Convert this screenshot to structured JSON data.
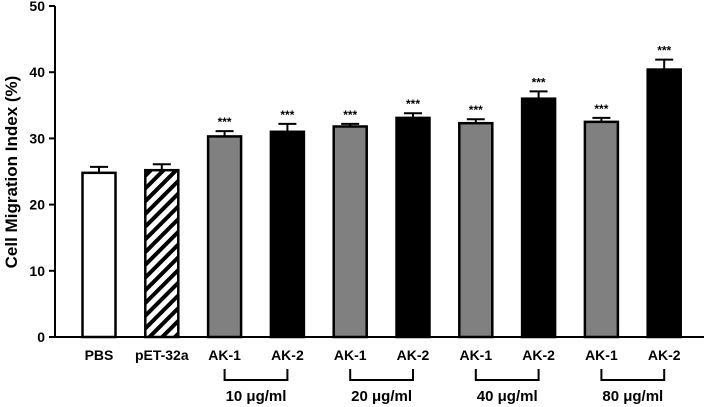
{
  "chart_data": {
    "type": "bar",
    "title": "",
    "ylabel": "Cell Migration Index (%)",
    "xlabel": "",
    "ylim": [
      0,
      50
    ],
    "yticks": [
      0,
      10,
      20,
      30,
      40,
      50
    ],
    "categories": [
      "PBS",
      "pET-32a",
      "AK-1",
      "AK-2",
      "AK-1",
      "AK-2",
      "AK-1",
      "AK-2",
      "AK-1",
      "AK-2"
    ],
    "values": [
      24.8,
      25.2,
      30.3,
      31.0,
      31.8,
      33.1,
      32.3,
      36.0,
      32.5,
      40.4
    ],
    "errors": [
      0.9,
      0.9,
      0.8,
      1.2,
      0.4,
      0.7,
      0.6,
      1.1,
      0.6,
      1.5
    ],
    "significance": [
      "",
      "",
      "***",
      "***",
      "***",
      "***",
      "***",
      "***",
      "***",
      "***"
    ],
    "fills": [
      "white",
      "hatched",
      "gray",
      "black",
      "gray",
      "black",
      "gray",
      "black",
      "gray",
      "black"
    ],
    "colors": {
      "gray": "#808080",
      "black": "#000000",
      "white": "#ffffff",
      "axis": "#000000"
    },
    "groups": [
      {
        "label": "10 μg/ml",
        "bars": [
          2,
          3
        ]
      },
      {
        "label": "20 μg/ml",
        "bars": [
          4,
          5
        ]
      },
      {
        "label": "40 μg/ml",
        "bars": [
          6,
          7
        ]
      },
      {
        "label": "80 μg/ml",
        "bars": [
          8,
          9
        ]
      }
    ]
  }
}
